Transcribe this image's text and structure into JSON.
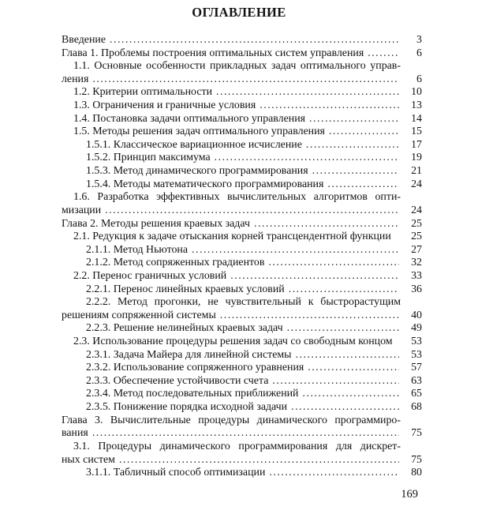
{
  "title": "ОГЛАВЛЕНИЕ",
  "folio": "169",
  "toc": {
    "lines": [
      {
        "indent": 0,
        "text": "Введение",
        "dots": true,
        "page": "3"
      },
      {
        "indent": 0,
        "text": "Глава 1. Проблемы построения оптимальных систем управления",
        "dots": true,
        "page": "6"
      },
      {
        "indent": 1,
        "text": "1.1. Основные особенности прикладных задач оптимального управ-",
        "justify": true
      },
      {
        "indent": 0,
        "text": "ления",
        "dots": true,
        "page": "6"
      },
      {
        "indent": 1,
        "text": "1.2. Критерии оптимальности",
        "dots": true,
        "page": "10"
      },
      {
        "indent": 1,
        "text": "1.3. Ограничения и граничные условия",
        "dots": true,
        "page": "13"
      },
      {
        "indent": 1,
        "text": "1.4. Постановка задачи оптимального управления",
        "dots": true,
        "page": "14"
      },
      {
        "indent": 1,
        "text": "1.5. Методы решения задач оптимального управления",
        "dots": true,
        "page": "15"
      },
      {
        "indent": 2,
        "text": "1.5.1. Классическое вариационное исчисление",
        "dots": true,
        "page": "17"
      },
      {
        "indent": 2,
        "text": "1.5.2. Принцип максимума",
        "dots": true,
        "page": "19"
      },
      {
        "indent": 2,
        "text": "1.5.3. Метод динамического программирования",
        "dots": true,
        "page": "21"
      },
      {
        "indent": 2,
        "text": "1.5.4. Методы математического программирования",
        "dots": true,
        "page": "24"
      },
      {
        "indent": 1,
        "text": "1.6. Разработка эффективных вычислительных алгоритмов опти-",
        "justify": true
      },
      {
        "indent": 0,
        "text": "мизации",
        "dots": true,
        "page": "24"
      },
      {
        "indent": 0,
        "text": "Глава 2. Методы решения краевых задач",
        "dots": true,
        "page": "25"
      },
      {
        "indent": 1,
        "text": "2.1. Редукция к задаче отыскания корней трансцендентной функции",
        "dots": false,
        "page": "25"
      },
      {
        "indent": 2,
        "text": "2.1.1. Метод Ньютона",
        "dots": true,
        "page": "27"
      },
      {
        "indent": 2,
        "text": "2.1.2. Метод сопряженных градиентов",
        "dots": true,
        "page": "32"
      },
      {
        "indent": 1,
        "text": "2.2. Перенос граничных условий",
        "dots": true,
        "page": "33"
      },
      {
        "indent": 2,
        "text": "2.2.1. Перенос линейных краевых условий",
        "dots": true,
        "page": "36"
      },
      {
        "indent": 2,
        "text": "2.2.2. Метод прогонки, не чувствительный к быстрорастущим",
        "justify": true
      },
      {
        "indent": 0,
        "text": "решениям сопряженной системы",
        "dots": true,
        "page": "40"
      },
      {
        "indent": 2,
        "text": "2.2.3. Решение нелинейных краевых задач",
        "dots": true,
        "page": "49"
      },
      {
        "indent": 1,
        "text": "2.3. Использование процедуры решения задач со свободным концом",
        "dots": false,
        "page": "53"
      },
      {
        "indent": 2,
        "text": "2.3.1. Задача Майера для линейной системы",
        "dots": true,
        "page": "53"
      },
      {
        "indent": 2,
        "text": "2.3.2. Использование сопряженного уравнения",
        "dots": true,
        "page": "57"
      },
      {
        "indent": 2,
        "text": "2.3.3. Обеспечение устойчивости счета",
        "dots": true,
        "page": "63"
      },
      {
        "indent": 2,
        "text": "2.3.4. Метод последовательных приближений",
        "dots": true,
        "page": "65"
      },
      {
        "indent": 2,
        "text": "2.3.5. Понижение порядка исходной задачи",
        "dots": true,
        "page": "68"
      },
      {
        "indent": 0,
        "text": "Глава 3. Вычислительные процедуры динамического программиро-",
        "justify": true
      },
      {
        "indent": 0,
        "text": "вания",
        "dots": true,
        "page": "75"
      },
      {
        "indent": 1,
        "text": "3.1. Процедуры динамического программирования для дискрет-",
        "justify": true
      },
      {
        "indent": 0,
        "text": "ных систем",
        "dots": true,
        "page": "75"
      },
      {
        "indent": 2,
        "text": "3.1.1. Табличный способ оптимизации",
        "dots": true,
        "page": "80"
      }
    ]
  }
}
